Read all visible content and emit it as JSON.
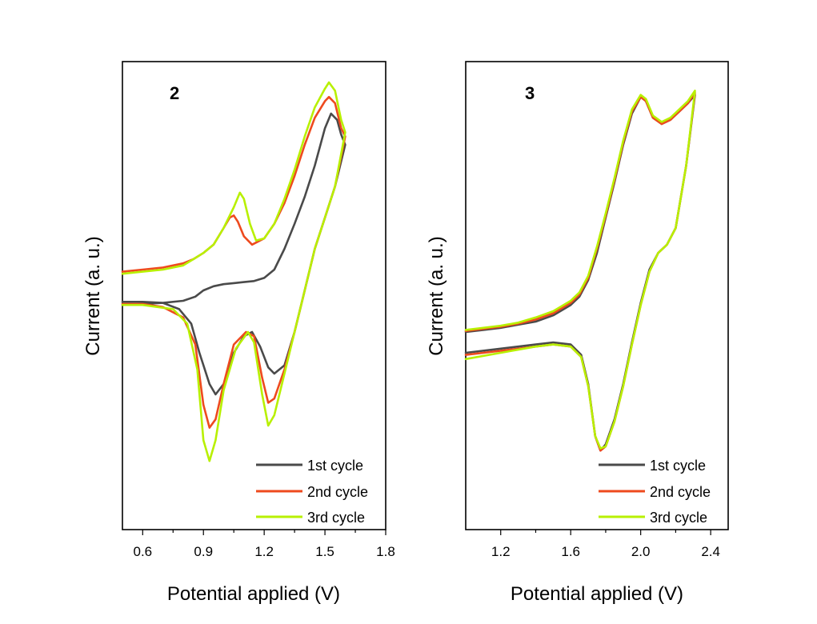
{
  "chart_data": [
    {
      "type": "line",
      "panel_label": "2",
      "xlabel": "Potential applied (V)",
      "ylabel": "Current (a. u.)",
      "xlim": [
        0.5,
        1.8
      ],
      "xticks": [
        "0.6",
        "0.9",
        "1.2",
        "1.5",
        "1.8"
      ],
      "ylim": [
        -1.0,
        1.0
      ],
      "y_ticks_shown": false,
      "grid": false,
      "legend_position": "bottom-right",
      "series": [
        {
          "name": "1st cycle",
          "color": "#4a4a4a",
          "forward": [
            [
              0.5,
              -0.07
            ],
            [
              0.6,
              -0.065
            ],
            [
              0.7,
              -0.06
            ],
            [
              0.8,
              -0.05
            ],
            [
              0.86,
              -0.03
            ],
            [
              0.9,
              0.0
            ],
            [
              0.95,
              0.02
            ],
            [
              1.0,
              0.03
            ],
            [
              1.05,
              0.035
            ],
            [
              1.1,
              0.04
            ],
            [
              1.15,
              0.045
            ],
            [
              1.2,
              0.06
            ],
            [
              1.25,
              0.1
            ],
            [
              1.3,
              0.2
            ],
            [
              1.35,
              0.32
            ],
            [
              1.4,
              0.45
            ],
            [
              1.45,
              0.6
            ],
            [
              1.5,
              0.78
            ],
            [
              1.53,
              0.85
            ],
            [
              1.56,
              0.82
            ],
            [
              1.58,
              0.75
            ],
            [
              1.6,
              0.7
            ]
          ],
          "reverse": [
            [
              1.6,
              0.63
            ],
            [
              1.55,
              0.5
            ],
            [
              1.5,
              0.35
            ],
            [
              1.45,
              0.2
            ],
            [
              1.4,
              0.0
            ],
            [
              1.35,
              -0.2
            ],
            [
              1.3,
              -0.36
            ],
            [
              1.25,
              -0.4
            ],
            [
              1.22,
              -0.37
            ],
            [
              1.18,
              -0.27
            ],
            [
              1.14,
              -0.2
            ],
            [
              1.1,
              -0.22
            ],
            [
              1.05,
              -0.3
            ],
            [
              1.0,
              -0.45
            ],
            [
              0.96,
              -0.5
            ],
            [
              0.93,
              -0.45
            ],
            [
              0.88,
              -0.3
            ],
            [
              0.84,
              -0.16
            ],
            [
              0.78,
              -0.09
            ],
            [
              0.7,
              -0.06
            ],
            [
              0.6,
              -0.055
            ],
            [
              0.5,
              -0.055
            ]
          ]
        },
        {
          "name": "2nd cycle",
          "color": "#ee4a1e",
          "forward": [
            [
              0.5,
              0.09
            ],
            [
              0.6,
              0.1
            ],
            [
              0.7,
              0.11
            ],
            [
              0.8,
              0.13
            ],
            [
              0.85,
              0.15
            ],
            [
              0.9,
              0.18
            ],
            [
              0.95,
              0.22
            ],
            [
              1.0,
              0.3
            ],
            [
              1.03,
              0.35
            ],
            [
              1.05,
              0.36
            ],
            [
              1.07,
              0.33
            ],
            [
              1.1,
              0.26
            ],
            [
              1.14,
              0.22
            ],
            [
              1.2,
              0.25
            ],
            [
              1.25,
              0.32
            ],
            [
              1.3,
              0.42
            ],
            [
              1.35,
              0.55
            ],
            [
              1.4,
              0.7
            ],
            [
              1.45,
              0.83
            ],
            [
              1.5,
              0.91
            ],
            [
              1.52,
              0.93
            ],
            [
              1.55,
              0.9
            ],
            [
              1.58,
              0.78
            ],
            [
              1.6,
              0.74
            ]
          ],
          "reverse": [
            [
              1.6,
              0.63
            ],
            [
              1.55,
              0.5
            ],
            [
              1.5,
              0.35
            ],
            [
              1.45,
              0.2
            ],
            [
              1.4,
              0.0
            ],
            [
              1.35,
              -0.2
            ],
            [
              1.3,
              -0.38
            ],
            [
              1.25,
              -0.52
            ],
            [
              1.22,
              -0.54
            ],
            [
              1.19,
              -0.42
            ],
            [
              1.15,
              -0.22
            ],
            [
              1.11,
              -0.2
            ],
            [
              1.05,
              -0.26
            ],
            [
              1.0,
              -0.45
            ],
            [
              0.96,
              -0.62
            ],
            [
              0.93,
              -0.66
            ],
            [
              0.9,
              -0.55
            ],
            [
              0.86,
              -0.26
            ],
            [
              0.8,
              -0.13
            ],
            [
              0.7,
              -0.08
            ],
            [
              0.6,
              -0.065
            ],
            [
              0.5,
              -0.065
            ]
          ]
        },
        {
          "name": "3rd cycle",
          "color": "#b8f000",
          "forward": [
            [
              0.5,
              0.08
            ],
            [
              0.6,
              0.09
            ],
            [
              0.7,
              0.1
            ],
            [
              0.8,
              0.12
            ],
            [
              0.85,
              0.15
            ],
            [
              0.9,
              0.18
            ],
            [
              0.95,
              0.22
            ],
            [
              1.0,
              0.3
            ],
            [
              1.05,
              0.4
            ],
            [
              1.08,
              0.47
            ],
            [
              1.1,
              0.44
            ],
            [
              1.13,
              0.32
            ],
            [
              1.16,
              0.24
            ],
            [
              1.2,
              0.25
            ],
            [
              1.25,
              0.32
            ],
            [
              1.3,
              0.44
            ],
            [
              1.35,
              0.58
            ],
            [
              1.4,
              0.74
            ],
            [
              1.45,
              0.88
            ],
            [
              1.5,
              0.97
            ],
            [
              1.52,
              1.0
            ],
            [
              1.55,
              0.96
            ],
            [
              1.58,
              0.82
            ],
            [
              1.6,
              0.76
            ]
          ],
          "reverse": [
            [
              1.6,
              0.63
            ],
            [
              1.55,
              0.5
            ],
            [
              1.5,
              0.35
            ],
            [
              1.45,
              0.2
            ],
            [
              1.4,
              0.0
            ],
            [
              1.35,
              -0.2
            ],
            [
              1.3,
              -0.4
            ],
            [
              1.25,
              -0.6
            ],
            [
              1.22,
              -0.65
            ],
            [
              1.19,
              -0.5
            ],
            [
              1.15,
              -0.25
            ],
            [
              1.12,
              -0.2
            ],
            [
              1.06,
              -0.28
            ],
            [
              1.0,
              -0.48
            ],
            [
              0.96,
              -0.72
            ],
            [
              0.93,
              -0.82
            ],
            [
              0.9,
              -0.72
            ],
            [
              0.87,
              -0.38
            ],
            [
              0.82,
              -0.16
            ],
            [
              0.75,
              -0.09
            ],
            [
              0.6,
              -0.07
            ],
            [
              0.5,
              -0.07
            ]
          ]
        }
      ]
    },
    {
      "type": "line",
      "panel_label": "3",
      "xlabel": "Potential applied (V)",
      "ylabel": "Current (a. u.)",
      "xlim": [
        1.0,
        2.5
      ],
      "xticks": [
        "1.2",
        "1.6",
        "2.0",
        "2.4"
      ],
      "ylim": [
        -1.0,
        1.0
      ],
      "y_ticks_shown": false,
      "grid": false,
      "legend_position": "bottom-right",
      "series": [
        {
          "name": "1st cycle",
          "color": "#4a4a4a",
          "forward": [
            [
              1.0,
              -0.2
            ],
            [
              1.1,
              -0.19
            ],
            [
              1.2,
              -0.18
            ],
            [
              1.3,
              -0.165
            ],
            [
              1.4,
              -0.15
            ],
            [
              1.5,
              -0.12
            ],
            [
              1.6,
              -0.07
            ],
            [
              1.65,
              -0.03
            ],
            [
              1.7,
              0.05
            ],
            [
              1.75,
              0.18
            ],
            [
              1.8,
              0.35
            ],
            [
              1.85,
              0.52
            ],
            [
              1.9,
              0.7
            ],
            [
              1.95,
              0.85
            ],
            [
              2.0,
              0.93
            ],
            [
              2.03,
              0.91
            ],
            [
              2.07,
              0.83
            ],
            [
              2.12,
              0.8
            ],
            [
              2.17,
              0.82
            ],
            [
              2.22,
              0.86
            ],
            [
              2.27,
              0.9
            ],
            [
              2.31,
              0.94
            ]
          ],
          "reverse": [
            [
              2.31,
              0.92
            ],
            [
              2.26,
              0.6
            ],
            [
              2.2,
              0.3
            ],
            [
              2.15,
              0.22
            ],
            [
              2.1,
              0.18
            ],
            [
              2.05,
              0.1
            ],
            [
              2.0,
              -0.06
            ],
            [
              1.95,
              -0.25
            ],
            [
              1.9,
              -0.45
            ],
            [
              1.85,
              -0.62
            ],
            [
              1.8,
              -0.74
            ],
            [
              1.77,
              -0.77
            ],
            [
              1.74,
              -0.7
            ],
            [
              1.7,
              -0.45
            ],
            [
              1.66,
              -0.31
            ],
            [
              1.6,
              -0.26
            ],
            [
              1.5,
              -0.25
            ],
            [
              1.4,
              -0.26
            ],
            [
              1.2,
              -0.28
            ],
            [
              1.0,
              -0.3
            ]
          ]
        },
        {
          "name": "2nd cycle",
          "color": "#ee4a1e",
          "forward": [
            [
              1.0,
              -0.195
            ],
            [
              1.1,
              -0.185
            ],
            [
              1.2,
              -0.175
            ],
            [
              1.3,
              -0.16
            ],
            [
              1.4,
              -0.14
            ],
            [
              1.5,
              -0.11
            ],
            [
              1.6,
              -0.06
            ],
            [
              1.65,
              -0.02
            ],
            [
              1.7,
              0.06
            ],
            [
              1.75,
              0.2
            ],
            [
              1.8,
              0.36
            ],
            [
              1.85,
              0.53
            ],
            [
              1.9,
              0.71
            ],
            [
              1.95,
              0.86
            ],
            [
              2.0,
              0.93
            ],
            [
              2.03,
              0.91
            ],
            [
              2.07,
              0.83
            ],
            [
              2.12,
              0.8
            ],
            [
              2.17,
              0.82
            ],
            [
              2.22,
              0.86
            ],
            [
              2.27,
              0.9
            ],
            [
              2.31,
              0.95
            ]
          ],
          "reverse": [
            [
              2.31,
              0.92
            ],
            [
              2.26,
              0.6
            ],
            [
              2.2,
              0.3
            ],
            [
              2.15,
              0.22
            ],
            [
              2.1,
              0.18
            ],
            [
              2.05,
              0.09
            ],
            [
              2.0,
              -0.07
            ],
            [
              1.95,
              -0.26
            ],
            [
              1.9,
              -0.46
            ],
            [
              1.85,
              -0.63
            ],
            [
              1.8,
              -0.75
            ],
            [
              1.77,
              -0.77
            ],
            [
              1.74,
              -0.7
            ],
            [
              1.7,
              -0.46
            ],
            [
              1.66,
              -0.32
            ],
            [
              1.6,
              -0.27
            ],
            [
              1.5,
              -0.26
            ],
            [
              1.4,
              -0.27
            ],
            [
              1.2,
              -0.29
            ],
            [
              1.0,
              -0.31
            ]
          ]
        },
        {
          "name": "3rd cycle",
          "color": "#b8f000",
          "forward": [
            [
              1.0,
              -0.19
            ],
            [
              1.1,
              -0.18
            ],
            [
              1.2,
              -0.17
            ],
            [
              1.3,
              -0.155
            ],
            [
              1.4,
              -0.13
            ],
            [
              1.5,
              -0.1
            ],
            [
              1.6,
              -0.05
            ],
            [
              1.65,
              -0.01
            ],
            [
              1.7,
              0.07
            ],
            [
              1.75,
              0.21
            ],
            [
              1.8,
              0.37
            ],
            [
              1.85,
              0.54
            ],
            [
              1.9,
              0.72
            ],
            [
              1.95,
              0.87
            ],
            [
              2.0,
              0.94
            ],
            [
              2.03,
              0.92
            ],
            [
              2.07,
              0.84
            ],
            [
              2.12,
              0.81
            ],
            [
              2.17,
              0.83
            ],
            [
              2.22,
              0.87
            ],
            [
              2.27,
              0.91
            ],
            [
              2.31,
              0.96
            ]
          ],
          "reverse": [
            [
              2.31,
              0.93
            ],
            [
              2.26,
              0.6
            ],
            [
              2.2,
              0.3
            ],
            [
              2.15,
              0.22
            ],
            [
              2.1,
              0.18
            ],
            [
              2.05,
              0.09
            ],
            [
              2.0,
              -0.07
            ],
            [
              1.95,
              -0.26
            ],
            [
              1.9,
              -0.46
            ],
            [
              1.85,
              -0.63
            ],
            [
              1.8,
              -0.75
            ],
            [
              1.77,
              -0.76
            ],
            [
              1.74,
              -0.7
            ],
            [
              1.7,
              -0.46
            ],
            [
              1.66,
              -0.32
            ],
            [
              1.6,
              -0.27
            ],
            [
              1.5,
              -0.26
            ],
            [
              1.4,
              -0.27
            ],
            [
              1.2,
              -0.3
            ],
            [
              1.0,
              -0.33
            ]
          ]
        }
      ]
    }
  ]
}
